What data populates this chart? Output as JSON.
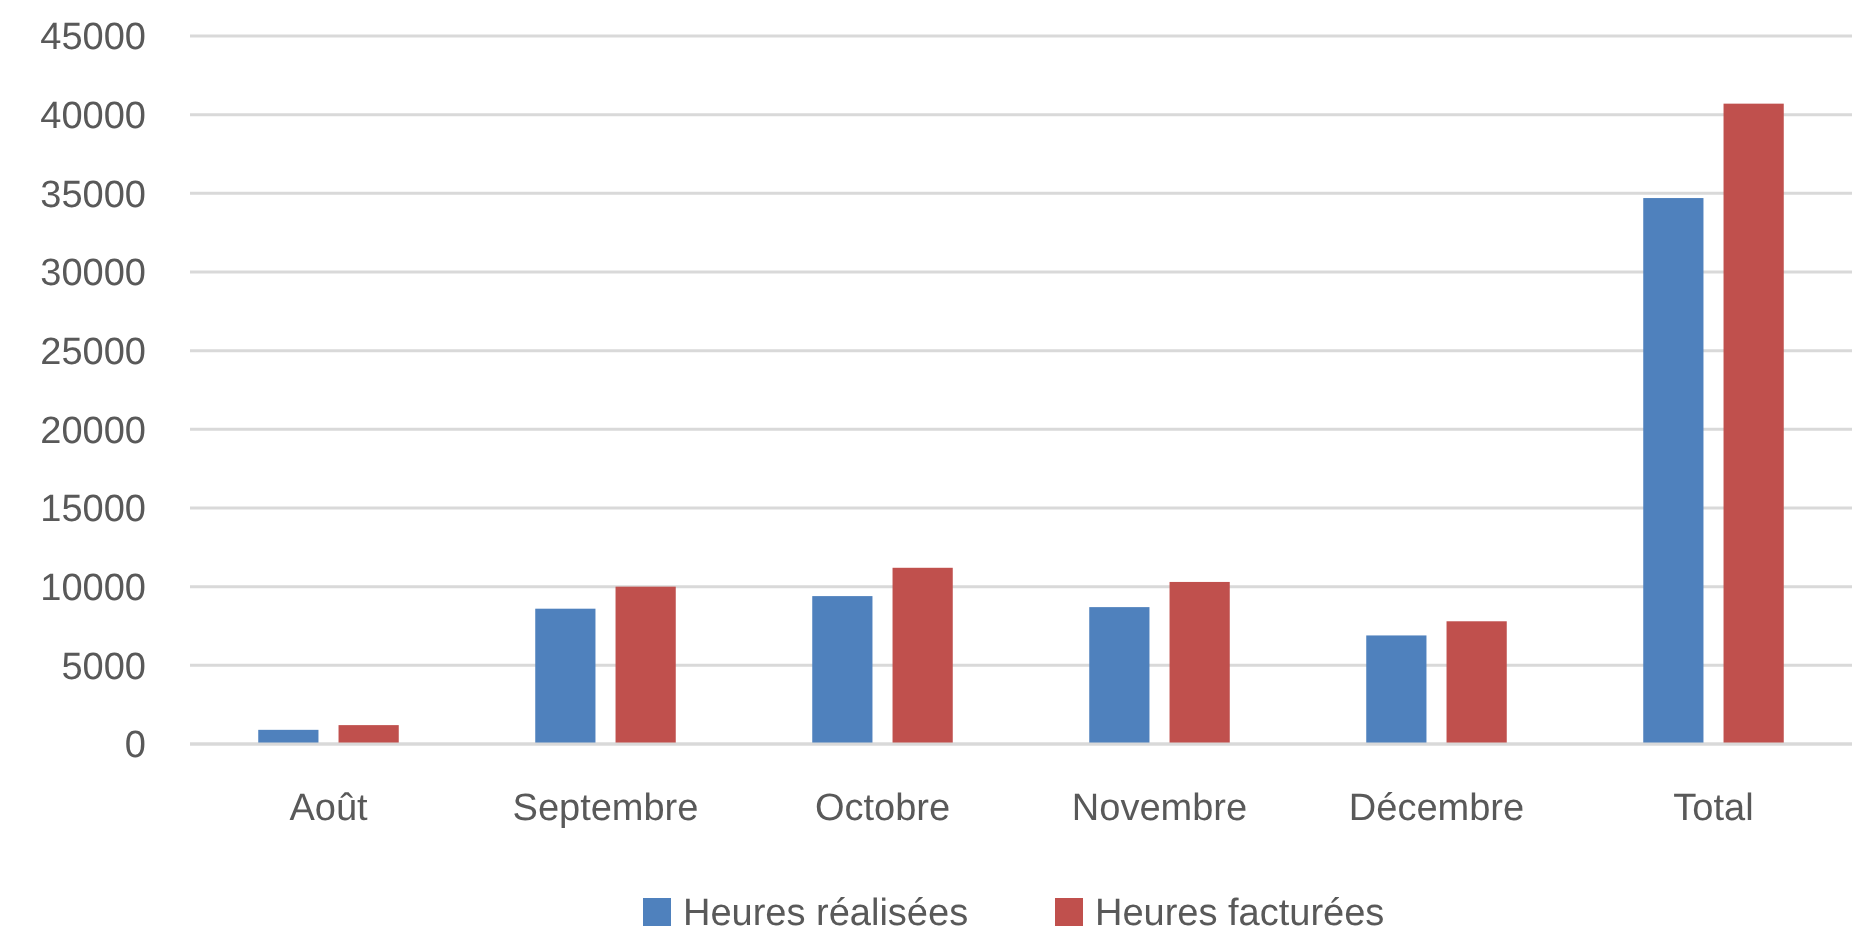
{
  "chart_data": {
    "type": "bar",
    "categories": [
      "Août",
      "Septembre",
      "Octobre",
      "Novembre",
      "Décembre",
      "Total"
    ],
    "series": [
      {
        "name": "Heures réalisées",
        "color": "#4f81bd",
        "values": [
          900,
          8600,
          9400,
          8700,
          6900,
          34700
        ]
      },
      {
        "name": "Heures facturées",
        "color": "#c0504d",
        "values": [
          1200,
          10000,
          11200,
          10300,
          7800,
          40700
        ]
      }
    ],
    "ylim": [
      0,
      45000
    ],
    "yticks": [
      0,
      5000,
      10000,
      15000,
      20000,
      25000,
      30000,
      35000,
      40000,
      45000
    ],
    "grid": "y",
    "legend": "bottom"
  }
}
